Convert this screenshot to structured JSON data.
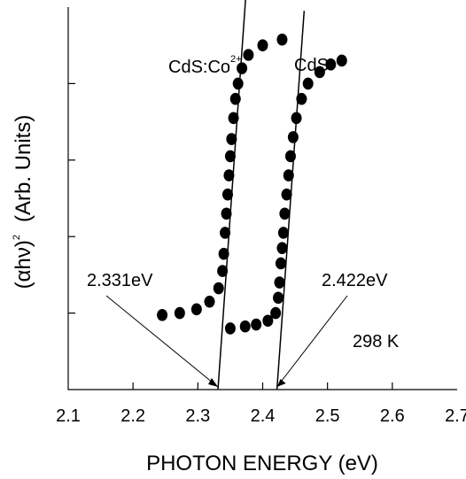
{
  "chart_data": {
    "type": "scatter",
    "xlabel": "PHOTON  ENERGY  (eV)",
    "ylabel_main": "(αhν)",
    "ylabel_sup": "2",
    "ylabel_unit": "(Arb. Units)",
    "xlim": [
      2.1,
      2.7
    ],
    "ylim": [
      0,
      1
    ],
    "x_ticks": [
      2.1,
      2.2,
      2.3,
      2.4,
      2.5,
      2.6,
      2.7
    ],
    "x_tick_labels": [
      "2.1",
      "2.2",
      "2.3",
      "2.4",
      "2.5",
      "2.6",
      "2.7"
    ],
    "series": [
      {
        "name": "CdS:Co",
        "name_sup": "2+",
        "points": [
          [
            2.245,
            0.195
          ],
          [
            2.272,
            0.2
          ],
          [
            2.298,
            0.21
          ],
          [
            2.318,
            0.23
          ],
          [
            2.332,
            0.265
          ],
          [
            2.338,
            0.31
          ],
          [
            2.34,
            0.355
          ],
          [
            2.342,
            0.41
          ],
          [
            2.344,
            0.46
          ],
          [
            2.346,
            0.51
          ],
          [
            2.348,
            0.56
          ],
          [
            2.35,
            0.61
          ],
          [
            2.352,
            0.655
          ],
          [
            2.355,
            0.71
          ],
          [
            2.358,
            0.76
          ],
          [
            2.362,
            0.8
          ],
          [
            2.368,
            0.84
          ],
          [
            2.378,
            0.875
          ],
          [
            2.4,
            0.9
          ],
          [
            2.43,
            0.915
          ]
        ],
        "edge_line": {
          "x1": 2.331,
          "y1": 0.0,
          "x2": 2.374,
          "y2": 1.03
        },
        "label_energy": "2.331eV"
      },
      {
        "name": "CdS",
        "points": [
          [
            2.35,
            0.16
          ],
          [
            2.373,
            0.165
          ],
          [
            2.39,
            0.17
          ],
          [
            2.408,
            0.18
          ],
          [
            2.42,
            0.2
          ],
          [
            2.424,
            0.24
          ],
          [
            2.426,
            0.28
          ],
          [
            2.428,
            0.33
          ],
          [
            2.43,
            0.37
          ],
          [
            2.432,
            0.41
          ],
          [
            2.434,
            0.46
          ],
          [
            2.437,
            0.51
          ],
          [
            2.44,
            0.56
          ],
          [
            2.443,
            0.61
          ],
          [
            2.447,
            0.66
          ],
          [
            2.452,
            0.71
          ],
          [
            2.46,
            0.76
          ],
          [
            2.47,
            0.8
          ],
          [
            2.488,
            0.83
          ],
          [
            2.505,
            0.85
          ],
          [
            2.522,
            0.86
          ]
        ],
        "edge_line": {
          "x1": 2.422,
          "y1": 0.0,
          "x2": 2.464,
          "y2": 0.99
        },
        "label_energy": "2.422eV"
      }
    ],
    "annotations": {
      "temperature": "298 K"
    },
    "grid": false
  }
}
